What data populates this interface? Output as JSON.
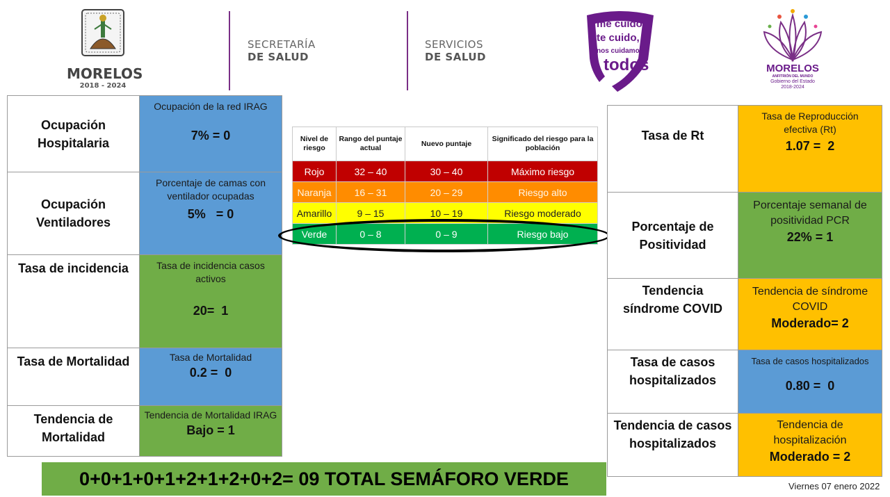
{
  "header": {
    "gov_name": "MORELOS",
    "gov_years": "2018 - 2024",
    "secretaria_line1": "SECRETARÍA",
    "secretaria_line2": "DE SALUD",
    "servicios_line1": "SERVICIOS",
    "servicios_line2": "DE SALUD",
    "campaign_line1": "me cuido,",
    "campaign_line2": "te cuido,",
    "campaign_line3": "nos cuidamos",
    "campaign_line4": "todos",
    "state_logo_name": "MORELOS",
    "state_logo_sub": "ANFITRIÓN DEL MUNDO",
    "state_logo_gov": "Gobierno del Estado",
    "state_logo_years": "2018-2024",
    "colors": {
      "accent_purple": "#7a2f86",
      "logo_purple": "#6a1b8a"
    }
  },
  "left_indicators": [
    {
      "label": "Ocupación Hospitalaria",
      "caption": "Ocupación de la red IRAG",
      "value": "7% = 0",
      "color": "#5b9bd5"
    },
    {
      "label": "Ocupación Ventiladores",
      "caption": "Porcentaje de camas con ventilador ocupadas",
      "value": "5%   = 0",
      "color": "#5b9bd5"
    },
    {
      "label": "Tasa de incidencia",
      "caption": "Tasa de incidencia casos activos",
      "value": "20=  1",
      "color": "#70ad47"
    },
    {
      "label": "Tasa de Mortalidad",
      "caption": "Tasa de Mortalidad",
      "value": "0.2 =  0",
      "color": "#5b9bd5"
    },
    {
      "label": "Tendencia de Mortalidad",
      "caption": "Tendencia de Mortalidad IRAG",
      "value": "Bajo = 1",
      "color": "#70ad47"
    }
  ],
  "right_indicators": [
    {
      "label": "Tasa de Rt",
      "caption": "Tasa de Reproducción efectiva (Rt)",
      "value": "1.07 =  2",
      "color": "#ffc000"
    },
    {
      "label": "Porcentaje de Positividad",
      "caption": "Porcentaje semanal de positividad PCR",
      "value": "22% = 1",
      "color": "#70ad47"
    },
    {
      "label": "Tendencia síndrome COVID",
      "caption": "Tendencia de síndrome COVID",
      "value": "Moderado= 2",
      "color": "#ffc000"
    },
    {
      "label": "Tasa de casos hospitalizados",
      "caption": "Tasa de casos hospitalizados",
      "value": "0.80 =  0",
      "color": "#5b9bd5"
    },
    {
      "label": "Tendencia de casos hospitalizados",
      "caption": "Tendencia de hospitalización",
      "value": "Moderado = 2",
      "color": "#ffc000"
    }
  ],
  "risk_table": {
    "headers": [
      "Nivel de riesgo",
      "Rango del puntaje actual",
      "Nuevo puntaje",
      "Significado del riesgo para la población"
    ],
    "rows": [
      {
        "level": "Rojo",
        "current_range": "32 – 40",
        "new_range": "30 – 40",
        "meaning": "Máximo riesgo",
        "color": "#c00000"
      },
      {
        "level": "Naranja",
        "current_range": "16 – 31",
        "new_range": "20 – 29",
        "meaning": "Riesgo alto",
        "color": "#ff8c00"
      },
      {
        "level": "Amarillo",
        "current_range": "9 – 15",
        "new_range": "10 – 19",
        "meaning": "Riesgo moderado",
        "color": "#ffff00"
      },
      {
        "level": "Verde",
        "current_range": "0 – 8",
        "new_range": "0 – 9",
        "meaning": "Riesgo bajo",
        "color": "#00b050"
      }
    ],
    "highlighted_level": "Verde"
  },
  "total": "0+0+1+0+1+2+1+2+0+2= 09 TOTAL SEMÁFORO VERDE",
  "date": "Viernes 07 enero 2022"
}
